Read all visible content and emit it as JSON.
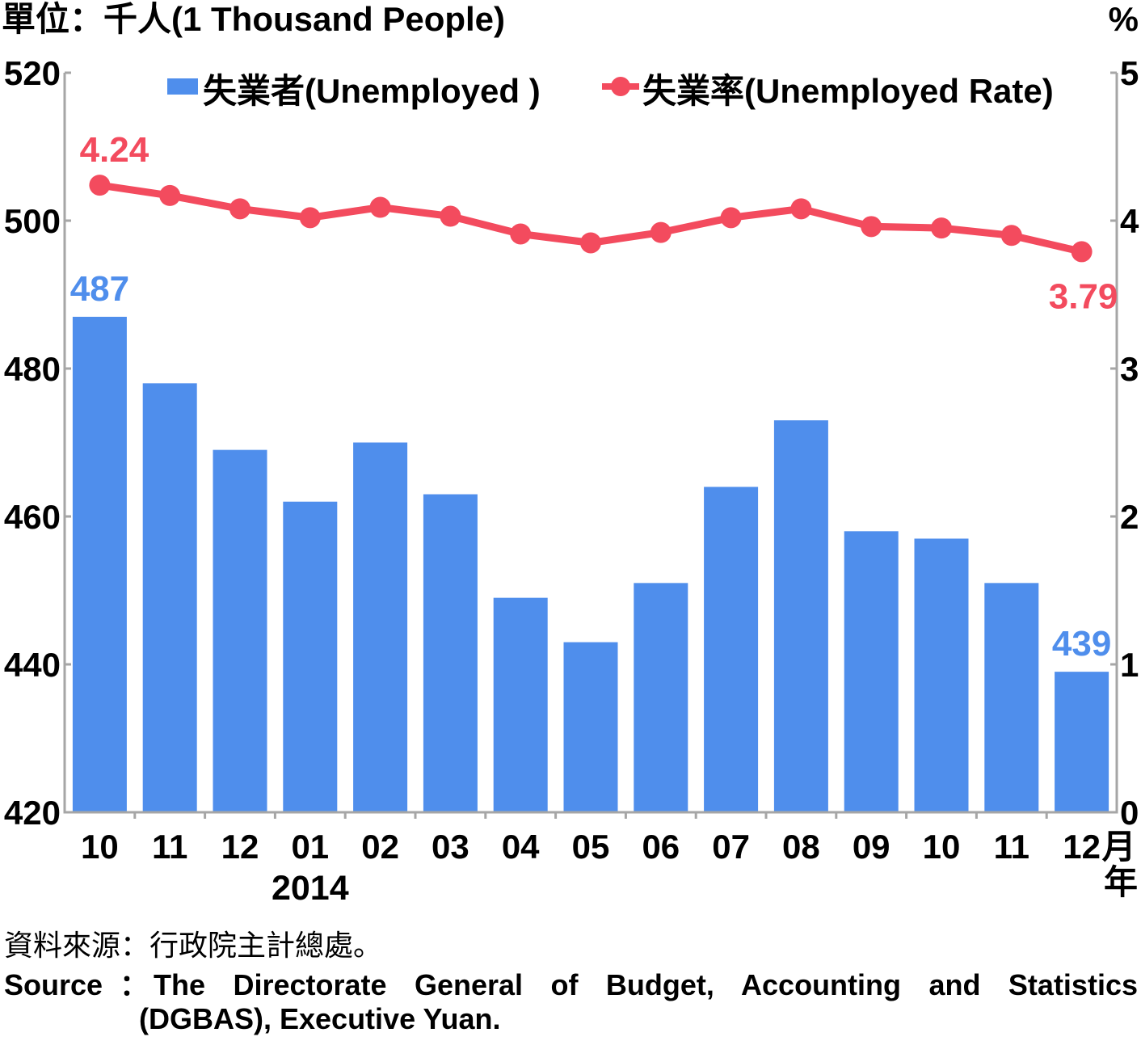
{
  "chart_data": {
    "type": "bar",
    "left_axis": {
      "label": "單位：千人(1 Thousand People)",
      "min": 420,
      "max": 520,
      "ticks": [
        420,
        440,
        460,
        480,
        500,
        520
      ]
    },
    "right_axis": {
      "label": "%",
      "min": 0,
      "max": 5,
      "ticks": [
        0,
        1,
        2,
        3,
        4,
        5
      ]
    },
    "categories": [
      "10",
      "11",
      "12",
      "01",
      "02",
      "03",
      "04",
      "05",
      "06",
      "07",
      "08",
      "09",
      "10",
      "11",
      "12"
    ],
    "x_unit_month": "月",
    "x_unit_year": "年",
    "year_marker": {
      "text": "2014",
      "category_index": 3
    },
    "series": [
      {
        "name": "失業者(Unemployed )",
        "type": "bar",
        "axis": "left",
        "color": "#4F8EEC",
        "values": [
          487,
          478,
          469,
          462,
          470,
          463,
          449,
          443,
          451,
          464,
          473,
          458,
          457,
          451,
          439
        ],
        "data_labels": [
          {
            "index": 0,
            "text": "487",
            "position": "above"
          },
          {
            "index": 14,
            "text": "439",
            "position": "above"
          }
        ]
      },
      {
        "name": "失業率(Unemployed Rate)",
        "type": "line",
        "axis": "right",
        "color": "#F34B5E",
        "values": [
          4.24,
          4.17,
          4.08,
          4.02,
          4.09,
          4.03,
          3.91,
          3.85,
          3.92,
          4.02,
          4.08,
          3.96,
          3.95,
          3.9,
          3.79
        ],
        "data_labels": [
          {
            "index": 0,
            "text": "4.24",
            "position": "above"
          },
          {
            "index": 14,
            "text": "3.79",
            "position": "below"
          }
        ]
      }
    ],
    "legend_position": "top",
    "grid": false,
    "axis_color": "#A6A6A6"
  },
  "source": {
    "zh": "資料來源：行政院主計總處。",
    "label": "Source",
    "separator": "：",
    "en_line1": "The Directorate General of Budget, Accounting and Statistics",
    "en_line2": "(DGBAS), Executive Yuan."
  }
}
